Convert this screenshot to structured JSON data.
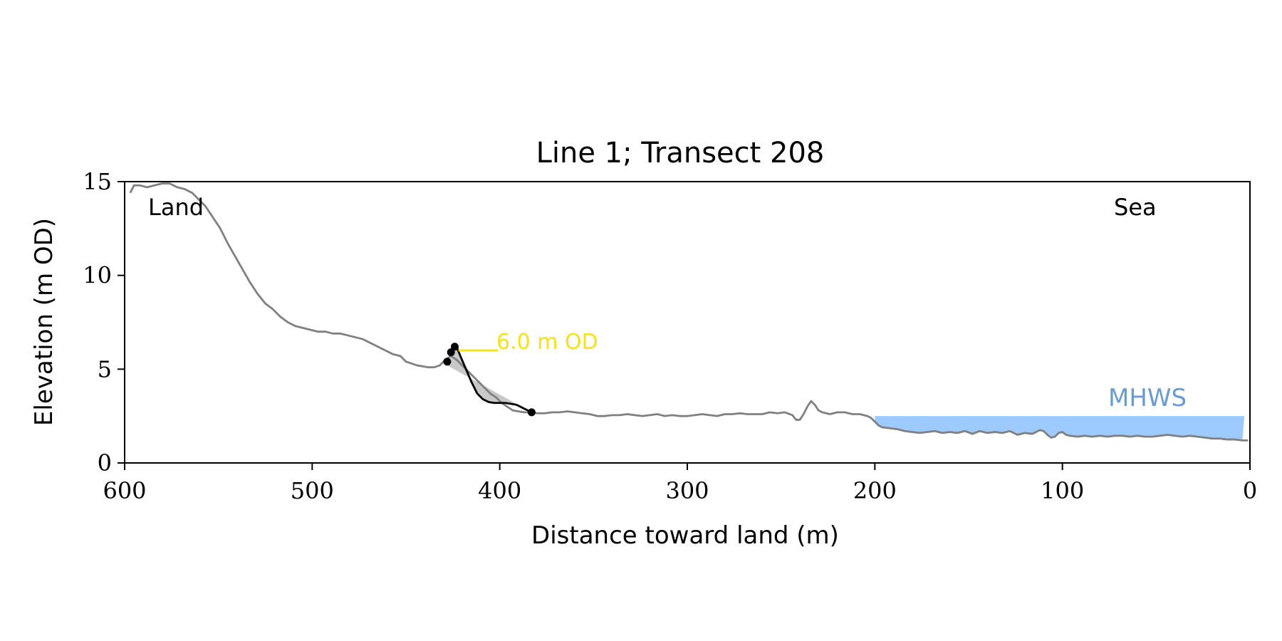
{
  "chart_data": {
    "type": "line",
    "title": "Line 1; Transect 208",
    "xlabel": "Distance toward land (m)",
    "ylabel": "Elevation (m OD)",
    "xlim": [
      600,
      0
    ],
    "ylim": [
      0,
      15
    ],
    "x_inverted": true,
    "x_ticks": [
      600,
      500,
      400,
      300,
      200,
      100,
      0
    ],
    "y_ticks": [
      0,
      5,
      10,
      15
    ],
    "grid": false,
    "annotations": {
      "land": "Land",
      "sea": "Sea",
      "mhws_label": "MHWS",
      "threshold_label": "6.0 m OD"
    },
    "colors": {
      "profile": "#808080",
      "fitted": "#000000",
      "threshold": "#f5e11c",
      "mhws": "#9ecbff",
      "mhws_text": "#6b9bd1",
      "fill": "#c8c8c8"
    },
    "mhws": {
      "level": 2.5,
      "x_start": 200,
      "x_end": 3
    },
    "threshold": {
      "level": 6.0,
      "x_start": 422,
      "x_end": 401
    },
    "profile": {
      "x": [
        597,
        595,
        592,
        588,
        584,
        580,
        576,
        572,
        568,
        564,
        561,
        557,
        553,
        549,
        545,
        541,
        537,
        533,
        529,
        525,
        521,
        517,
        513,
        509,
        505,
        501,
        497,
        493,
        489,
        485,
        481,
        477,
        473,
        469,
        465,
        461,
        457,
        453,
        450,
        447,
        444,
        441,
        438,
        435,
        432,
        429,
        426,
        423,
        420,
        417,
        414,
        411,
        408,
        405,
        402,
        399,
        396,
        393,
        390,
        387,
        384,
        380,
        376,
        372,
        368,
        364,
        360,
        356,
        352,
        348,
        344,
        340,
        336,
        332,
        328,
        324,
        320,
        316,
        312,
        308,
        304,
        300,
        296,
        292,
        288,
        284,
        280,
        276,
        272,
        268,
        264,
        260,
        256,
        252,
        248,
        244,
        242,
        240,
        238,
        236,
        234,
        232,
        230,
        228,
        224,
        220,
        216,
        212,
        208,
        204,
        202,
        200,
        198,
        196,
        192,
        188,
        184,
        180,
        176,
        172,
        168,
        164,
        160,
        156,
        152,
        148,
        144,
        140,
        136,
        132,
        128,
        124,
        120,
        116,
        112,
        110,
        108,
        106,
        104,
        102,
        100,
        98,
        96,
        92,
        88,
        84,
        80,
        76,
        72,
        68,
        64,
        60,
        56,
        52,
        48,
        44,
        40,
        36,
        32,
        28,
        24,
        20,
        16,
        12,
        8,
        4,
        1
      ],
      "y": [
        14.4,
        14.8,
        14.8,
        14.7,
        14.8,
        14.9,
        14.9,
        14.7,
        14.6,
        14.4,
        14.1,
        13.7,
        13.1,
        12.5,
        11.7,
        11.0,
        10.3,
        9.6,
        9.0,
        8.5,
        8.2,
        7.8,
        7.5,
        7.3,
        7.2,
        7.1,
        7.0,
        7.0,
        6.9,
        6.9,
        6.8,
        6.7,
        6.6,
        6.4,
        6.2,
        6.0,
        5.8,
        5.7,
        5.4,
        5.3,
        5.2,
        5.15,
        5.1,
        5.1,
        5.2,
        5.5,
        5.7,
        5.5,
        5.2,
        4.9,
        4.6,
        4.3,
        4.0,
        3.7,
        3.5,
        3.2,
        3.0,
        2.8,
        2.75,
        2.7,
        2.7,
        2.65,
        2.65,
        2.7,
        2.7,
        2.75,
        2.7,
        2.65,
        2.6,
        2.5,
        2.5,
        2.55,
        2.55,
        2.6,
        2.55,
        2.5,
        2.55,
        2.6,
        2.5,
        2.55,
        2.5,
        2.5,
        2.55,
        2.6,
        2.55,
        2.5,
        2.6,
        2.6,
        2.65,
        2.6,
        2.6,
        2.6,
        2.7,
        2.65,
        2.7,
        2.55,
        2.3,
        2.3,
        2.6,
        3.0,
        3.3,
        3.1,
        2.8,
        2.7,
        2.6,
        2.7,
        2.7,
        2.6,
        2.6,
        2.5,
        2.4,
        2.2,
        2.0,
        1.9,
        1.85,
        1.8,
        1.7,
        1.65,
        1.6,
        1.65,
        1.7,
        1.6,
        1.65,
        1.6,
        1.7,
        1.55,
        1.7,
        1.6,
        1.65,
        1.6,
        1.7,
        1.5,
        1.6,
        1.55,
        1.75,
        1.7,
        1.5,
        1.35,
        1.4,
        1.6,
        1.65,
        1.5,
        1.45,
        1.4,
        1.45,
        1.4,
        1.45,
        1.4,
        1.45,
        1.45,
        1.4,
        1.45,
        1.4,
        1.4,
        1.45,
        1.5,
        1.45,
        1.4,
        1.45,
        1.4,
        1.35,
        1.3,
        1.3,
        1.25,
        1.25,
        1.2,
        1.2
      ]
    },
    "fitted_curve": {
      "x": [
        423,
        421,
        418,
        415,
        412,
        409,
        406,
        403,
        400,
        397,
        394,
        391,
        388,
        385,
        383
      ],
      "y": [
        6.2,
        5.7,
        5.0,
        4.3,
        3.7,
        3.4,
        3.25,
        3.2,
        3.2,
        3.2,
        3.15,
        3.1,
        2.95,
        2.8,
        2.7
      ]
    },
    "fitted_points": [
      {
        "x": 428,
        "y": 5.4
      },
      {
        "x": 426,
        "y": 5.9
      },
      {
        "x": 424,
        "y": 6.2
      },
      {
        "x": 383,
        "y": 2.7
      }
    ]
  }
}
